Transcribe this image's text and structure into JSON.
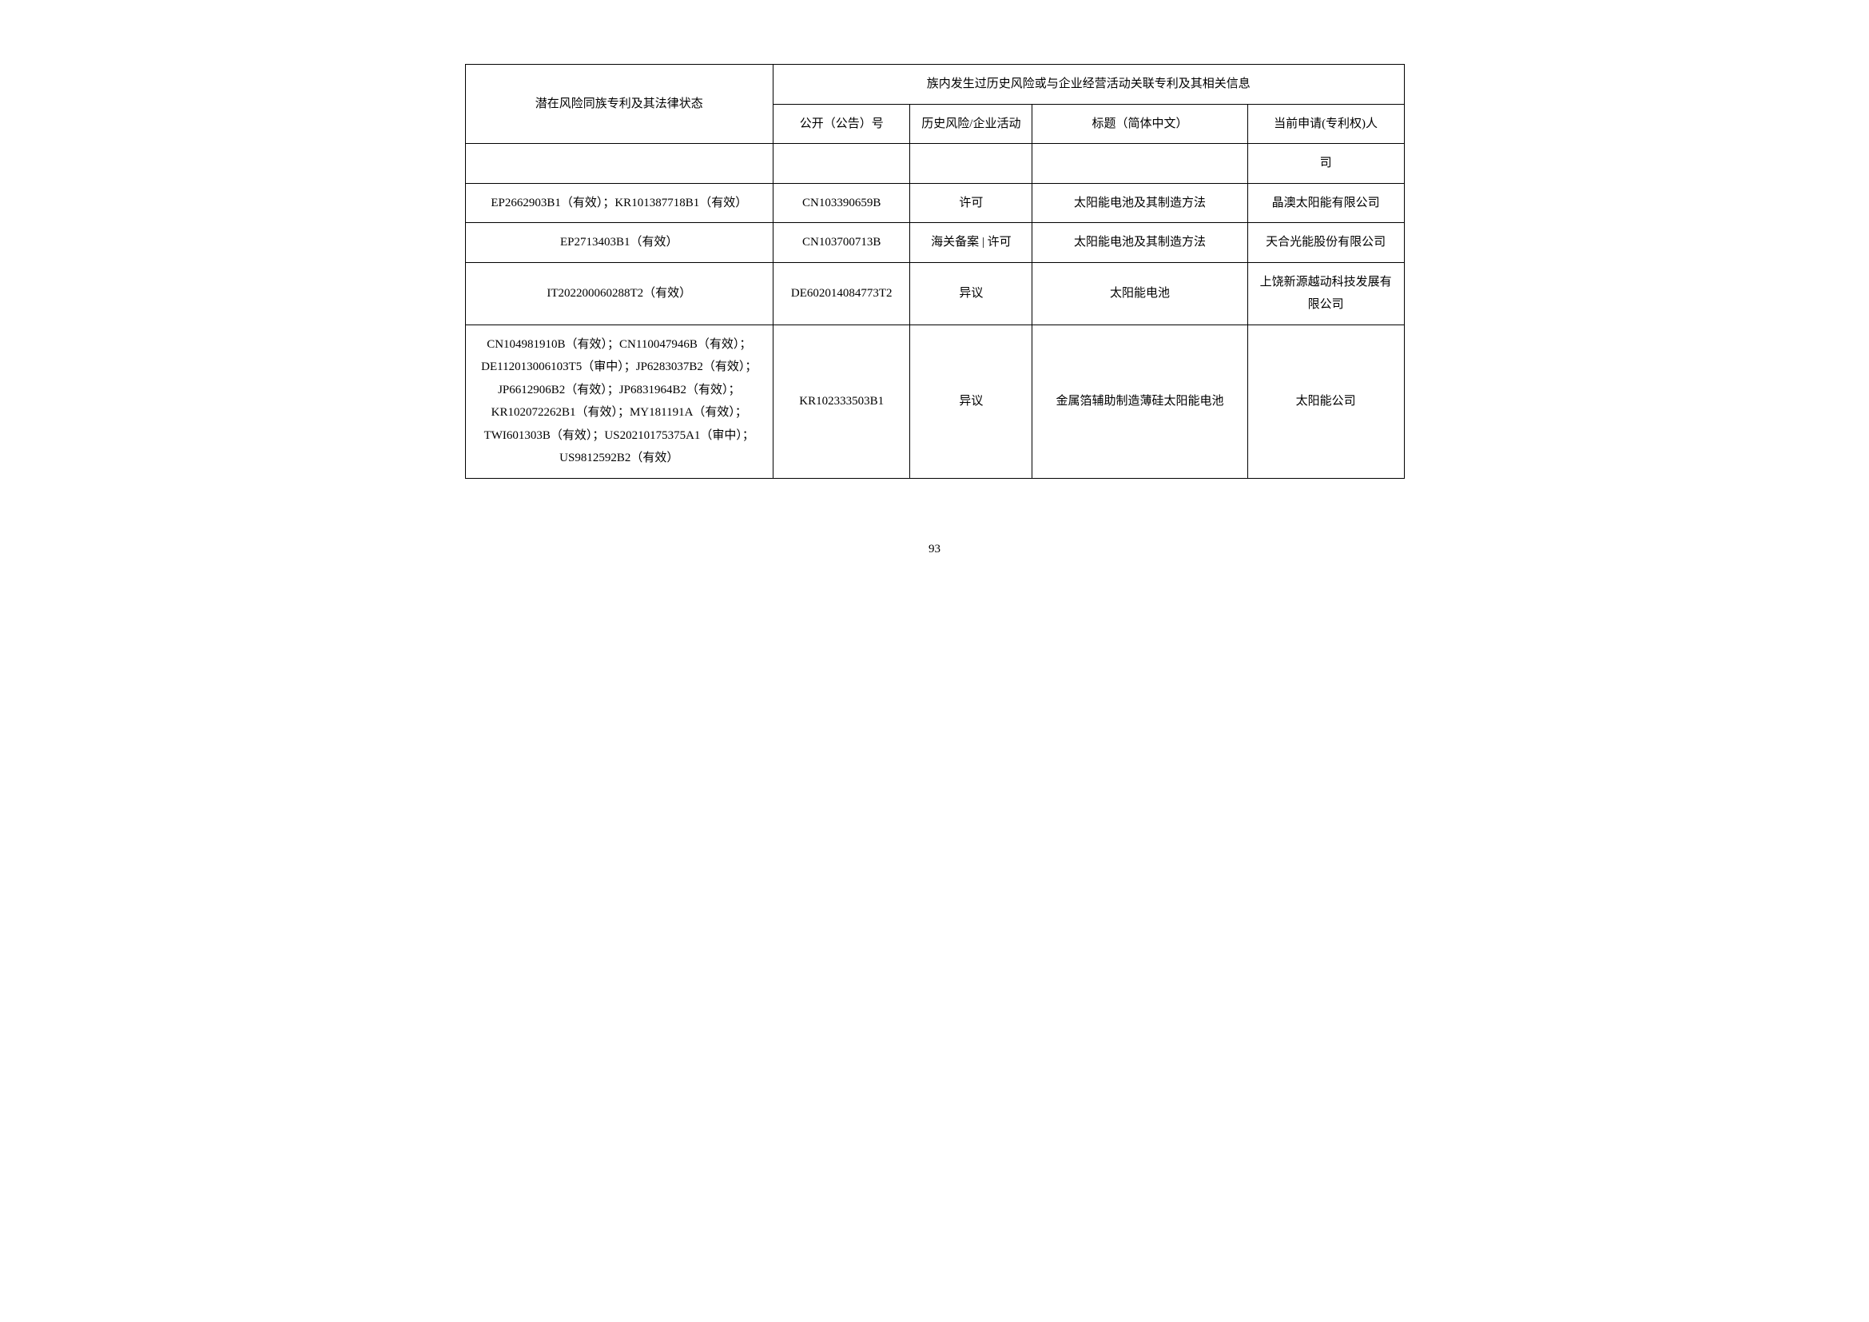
{
  "table": {
    "header": {
      "col1": "潜在风险同族专利及其法律状态",
      "col_group": "族内发生过历史风险或与企业经营活动关联专利及其相关信息",
      "sub_col1": "公开（公告）号",
      "sub_col2": "历史风险/企业活动",
      "sub_col3": "标题（简体中文）",
      "sub_col4": "当前申请(专利权)人"
    },
    "rows": [
      {
        "c1": "",
        "c2": "",
        "c3": "",
        "c4": "",
        "c5": "司"
      },
      {
        "c1": "EP2662903B1（有效）；KR101387718B1（有效）",
        "c2": "CN103390659B",
        "c3": "许可",
        "c4": "太阳能电池及其制造方法",
        "c5": "晶澳太阳能有限公司"
      },
      {
        "c1": "EP2713403B1（有效）",
        "c2": "CN103700713B",
        "c3": "海关备案 | 许可",
        "c4": "太阳能电池及其制造方法",
        "c5": "天合光能股份有限公司"
      },
      {
        "c1": "IT202200060288T2（有效）",
        "c2": "DE602014084773T2",
        "c3": "异议",
        "c4": "太阳能电池",
        "c5": "上饶新源越动科技发展有限公司"
      },
      {
        "c1": "CN104981910B（有效）；CN110047946B（有效）；DE112013006103T5（审中）；JP6283037B2（有效）；JP6612906B2（有效）；JP6831964B2（有效）；KR102072262B1（有效）；MY181191A（有效）；TWI601303B（有效）；US20210175375A1（审中）；US9812592B2（有效）",
        "c2": "KR102333503B1",
        "c3": "异议",
        "c4": "金属箔辅助制造薄硅太阳能电池",
        "c5": "太阳能公司"
      }
    ]
  },
  "page_number": "93",
  "styling": {
    "background_color": "#ffffff",
    "border_color": "#000000",
    "text_color": "#000000",
    "font_size": 15,
    "font_family": "SimSun",
    "column_widths": [
      "31.5%",
      "14%",
      "12.5%",
      "22%",
      "16%"
    ]
  }
}
